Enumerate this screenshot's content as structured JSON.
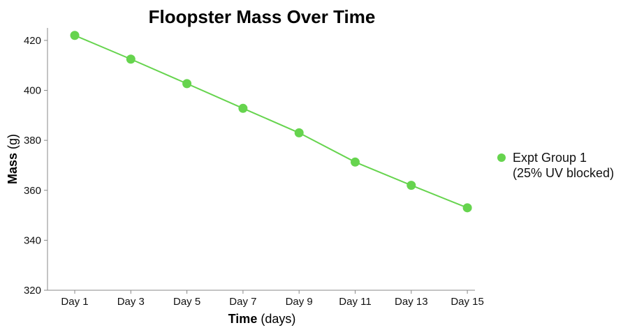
{
  "chart_data": {
    "type": "line",
    "title": "Floopster Mass Over Time",
    "xlabel_bold": "Time",
    "xlabel_rest": " (days)",
    "ylabel_bold": "Mass",
    "ylabel_rest": " (g)",
    "categories": [
      "Day 1",
      "Day 3",
      "Day 5",
      "Day 7",
      "Day 9",
      "Day 11",
      "Day 13",
      "Day 15"
    ],
    "ylim": [
      320,
      425
    ],
    "yticks": [
      320,
      340,
      360,
      380,
      400,
      420
    ],
    "grid": false,
    "legend_position": "right",
    "series": [
      {
        "name_line1": "Expt Group 1",
        "name_line2": "(25% UV blocked)",
        "color": "#66d44e",
        "values": [
          422,
          412.5,
          402.7,
          392.8,
          383,
          371.3,
          362,
          353
        ]
      }
    ]
  }
}
